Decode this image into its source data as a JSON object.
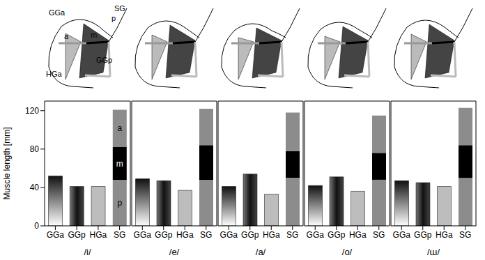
{
  "diagram": {
    "labels": [
      "GGa",
      "a",
      "m",
      "p",
      "SG",
      "HGa",
      "GGp"
    ]
  },
  "chart_data": [
    {
      "type": "bar",
      "stacked": true,
      "title": "/i/",
      "ylabel": "Muscle length [mm]",
      "categories": [
        "GGa",
        "GGp",
        "HGa",
        "SG"
      ],
      "values": [
        52,
        41,
        41,
        null
      ],
      "colors": [
        "#111111",
        "#111111",
        "#bdbdbd",
        null
      ],
      "series": [
        {
          "name": "p",
          "color": "#8c8c8c",
          "values": [
            null,
            null,
            null,
            48
          ]
        },
        {
          "name": "m",
          "color": "#000000",
          "values": [
            null,
            null,
            null,
            34
          ]
        },
        {
          "name": "a",
          "color": "#8c8c8c",
          "values": [
            null,
            null,
            null,
            39
          ]
        }
      ],
      "ylim": [
        0,
        130
      ],
      "yticks": [
        0,
        40,
        80,
        120
      ]
    },
    {
      "type": "bar",
      "stacked": true,
      "title": "/e/",
      "categories": [
        "GGa",
        "GGp",
        "HGa",
        "SG"
      ],
      "values": [
        49,
        47,
        37,
        null
      ],
      "colors": [
        "#111111",
        "#111111",
        "#bdbdbd",
        null
      ],
      "series": [
        {
          "color": "#8c8c8c",
          "values": [
            null,
            null,
            null,
            48
          ]
        },
        {
          "color": "#000000",
          "values": [
            null,
            null,
            null,
            36
          ]
        },
        {
          "color": "#8c8c8c",
          "values": [
            null,
            null,
            null,
            38
          ]
        }
      ],
      "ylim": [
        0,
        130
      ],
      "yticks": [
        0,
        40,
        80,
        120
      ],
      "tick_labels": "x"
    },
    {
      "type": "bar",
      "stacked": true,
      "title": "/a/",
      "categories": [
        "GGa",
        "GGp",
        "HGa",
        "SG"
      ],
      "values": [
        41,
        54,
        33,
        null
      ],
      "colors": [
        "#111111",
        "#111111",
        "#bdbdbd",
        null
      ],
      "series": [
        {
          "color": "#8c8c8c",
          "values": [
            null,
            null,
            null,
            50
          ]
        },
        {
          "color": "#000000",
          "values": [
            null,
            null,
            null,
            28
          ]
        },
        {
          "color": "#8c8c8c",
          "values": [
            null,
            null,
            null,
            40
          ]
        }
      ],
      "ylim": [
        0,
        130
      ],
      "yticks": [
        0,
        40,
        80,
        120
      ],
      "tick_labels": "x"
    },
    {
      "type": "bar",
      "stacked": true,
      "title": "/o/",
      "categories": [
        "GGa",
        "GGp",
        "HGa",
        "SG"
      ],
      "values": [
        42,
        51,
        36,
        null
      ],
      "colors": [
        "#111111",
        "#111111",
        "#bdbdbd",
        null
      ],
      "series": [
        {
          "color": "#8c8c8c",
          "values": [
            null,
            null,
            null,
            48
          ]
        },
        {
          "color": "#000000",
          "values": [
            null,
            null,
            null,
            28
          ]
        },
        {
          "color": "#8c8c8c",
          "values": [
            null,
            null,
            null,
            39
          ]
        }
      ],
      "ylim": [
        0,
        130
      ],
      "yticks": [
        0,
        40,
        80,
        120
      ],
      "tick_labels": "x"
    },
    {
      "type": "bar",
      "stacked": true,
      "title": "/ɯ/",
      "categories": [
        "GGa",
        "GGp",
        "HGa",
        "SG"
      ],
      "values": [
        47,
        45,
        41,
        null
      ],
      "colors": [
        "#111111",
        "#111111",
        "#bdbdbd",
        null
      ],
      "series": [
        {
          "color": "#8c8c8c",
          "values": [
            null,
            null,
            null,
            50
          ]
        },
        {
          "color": "#000000",
          "values": [
            null,
            null,
            null,
            34
          ]
        },
        {
          "color": "#8c8c8c",
          "values": [
            null,
            null,
            null,
            39
          ]
        }
      ],
      "ylim": [
        0,
        130
      ],
      "yticks": [
        0,
        40,
        80,
        120
      ],
      "tick_labels": "x"
    }
  ]
}
